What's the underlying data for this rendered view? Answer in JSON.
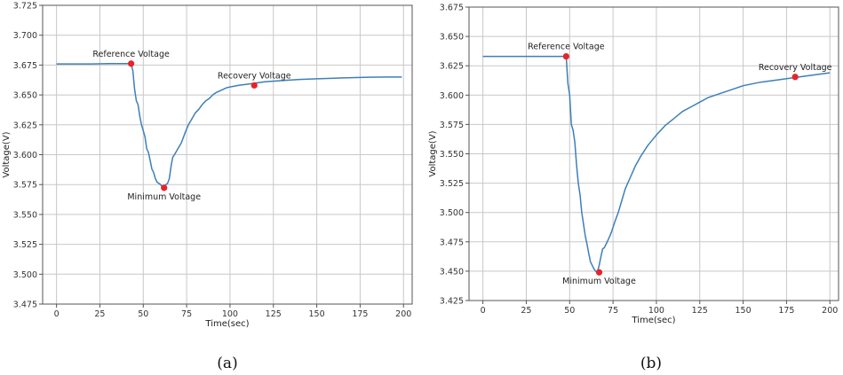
{
  "chart_data": [
    {
      "type": "line",
      "caption": "(a)",
      "xlabel": "Time(sec)",
      "ylabel": "Voltage(V)",
      "xlim": [
        -8,
        205
      ],
      "ylim": [
        3.475,
        3.725
      ],
      "xticks": [
        0,
        25,
        50,
        75,
        100,
        125,
        150,
        175,
        200
      ],
      "yticks": [
        "3.475",
        "3.500",
        "3.525",
        "3.550",
        "3.575",
        "3.600",
        "3.625",
        "3.650",
        "3.675",
        "3.700",
        "3.725"
      ],
      "grid": true,
      "color": "#3d7fb8",
      "series": [
        {
          "x": [
            0,
            10,
            20,
            30,
            40,
            43,
            44,
            45,
            46,
            47,
            48,
            49,
            50,
            51,
            52,
            53,
            54,
            55,
            56,
            57,
            58,
            59,
            60,
            61,
            62,
            63,
            64,
            65,
            66,
            67,
            68,
            70,
            72,
            74,
            76,
            78,
            80,
            82,
            84,
            86,
            88,
            90,
            92,
            95,
            98,
            101,
            105,
            110,
            115,
            120,
            130,
            140,
            150,
            160,
            170,
            180,
            190,
            199
          ],
          "y": [
            3.676,
            3.676,
            3.676,
            3.6762,
            3.6762,
            3.6762,
            3.67,
            3.655,
            3.645,
            3.642,
            3.632,
            3.625,
            3.62,
            3.615,
            3.605,
            3.602,
            3.595,
            3.588,
            3.585,
            3.58,
            3.577,
            3.576,
            3.575,
            3.573,
            3.573,
            3.575,
            3.576,
            3.58,
            3.59,
            3.598,
            3.6,
            3.605,
            3.61,
            3.618,
            3.625,
            3.63,
            3.635,
            3.638,
            3.642,
            3.645,
            3.647,
            3.65,
            3.652,
            3.654,
            3.656,
            3.657,
            3.658,
            3.659,
            3.66,
            3.661,
            3.662,
            3.663,
            3.6635,
            3.664,
            3.6645,
            3.6648,
            3.665,
            3.665
          ]
        }
      ],
      "points": [
        {
          "x": 43,
          "y": 3.6762,
          "label": "Reference Voltage",
          "label_pos": "above"
        },
        {
          "x": 62,
          "y": 3.5723,
          "label": "Minimum Voltage",
          "label_pos": "below"
        },
        {
          "x": 114,
          "y": 3.658,
          "label": "Recovery Voltage",
          "label_pos": "above"
        }
      ],
      "marker_color": "#e8232a"
    },
    {
      "type": "line",
      "caption": "(b)",
      "xlabel": "Time(sec)",
      "ylabel": "Voltage(V)",
      "xlim": [
        -8,
        205
      ],
      "ylim": [
        3.425,
        3.675
      ],
      "xticks": [
        0,
        25,
        50,
        75,
        100,
        125,
        150,
        175,
        200
      ],
      "yticks": [
        "3.425",
        "3.450",
        "3.475",
        "3.500",
        "3.525",
        "3.550",
        "3.575",
        "3.600",
        "3.625",
        "3.650",
        "3.675"
      ],
      "grid": true,
      "color": "#3d7fb8",
      "series": [
        {
          "x": [
            0,
            10,
            20,
            30,
            40,
            48,
            49,
            50,
            51,
            52,
            53,
            54,
            55,
            56,
            57,
            58,
            59,
            60,
            61,
            62,
            63,
            64,
            65,
            66,
            67,
            68,
            69,
            70,
            72,
            74,
            76,
            78,
            80,
            82,
            85,
            88,
            91,
            95,
            100,
            105,
            110,
            115,
            120,
            125,
            130,
            140,
            150,
            160,
            170,
            180,
            190,
            200
          ],
          "y": [
            3.633,
            3.633,
            3.633,
            3.633,
            3.633,
            3.633,
            3.61,
            3.6,
            3.575,
            3.57,
            3.56,
            3.54,
            3.525,
            3.515,
            3.5,
            3.49,
            3.48,
            3.473,
            3.465,
            3.458,
            3.455,
            3.452,
            3.45,
            3.449,
            3.455,
            3.462,
            3.469,
            3.47,
            3.476,
            3.483,
            3.492,
            3.5,
            3.51,
            3.52,
            3.53,
            3.54,
            3.548,
            3.557,
            3.566,
            3.574,
            3.58,
            3.586,
            3.59,
            3.594,
            3.598,
            3.603,
            3.608,
            3.611,
            3.613,
            3.615,
            3.617,
            3.619
          ]
        }
      ],
      "points": [
        {
          "x": 48,
          "y": 3.633,
          "label": "Reference Voltage",
          "label_pos": "above"
        },
        {
          "x": 67,
          "y": 3.449,
          "label": "Minimum Voltage",
          "label_pos": "below"
        },
        {
          "x": 180,
          "y": 3.6155,
          "label": "Recovery Voltage",
          "label_pos": "above"
        }
      ],
      "marker_color": "#e8232a"
    }
  ]
}
